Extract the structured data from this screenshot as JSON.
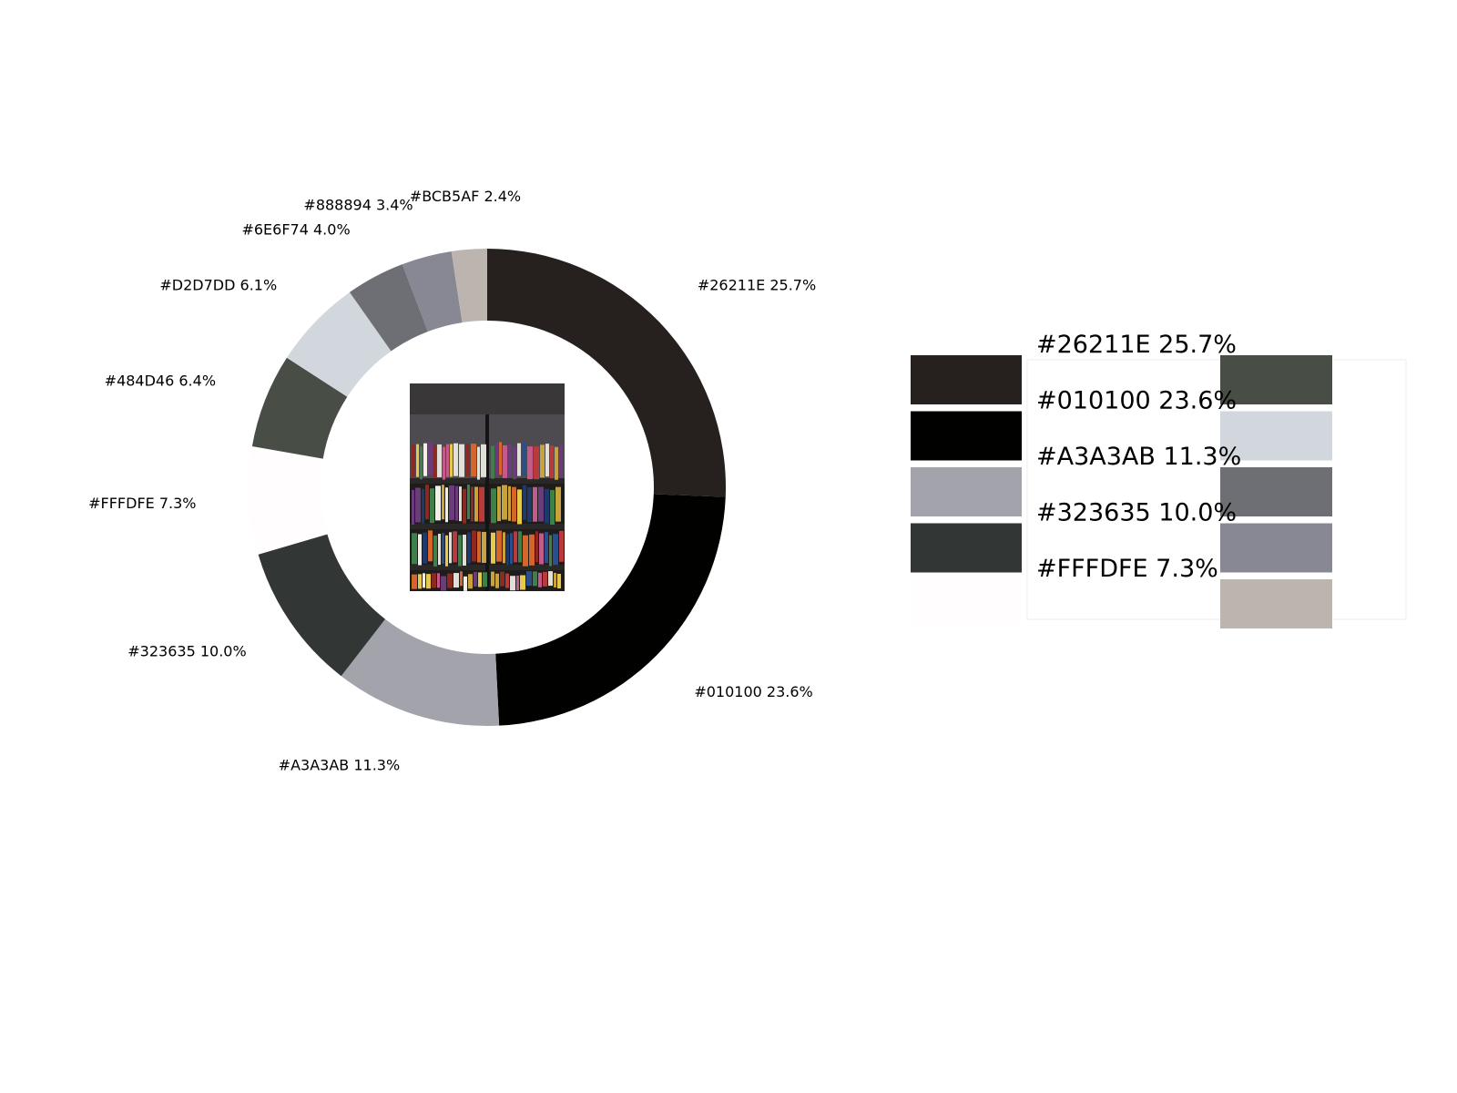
{
  "chart_data": {
    "type": "pie",
    "style": "donut",
    "labels": [
      "#26211E",
      "#010100",
      "#A3A3AB",
      "#323635",
      "#FFFDFE",
      "#484D46",
      "#D2D7DD",
      "#6E6F74",
      "#888894",
      "#BCB5AF"
    ],
    "values": [
      25.7,
      23.6,
      11.3,
      10.0,
      7.3,
      6.4,
      6.1,
      4.0,
      3.4,
      2.4
    ],
    "colors": [
      "#26211E",
      "#010100",
      "#A3A3AB",
      "#323635",
      "#FFFDFE",
      "#484D46",
      "#D2D7DD",
      "#6E6F74",
      "#888894",
      "#BCB5AF"
    ],
    "slice_labels": [
      "#26211E 25.7%",
      "#010100 23.6%",
      "#A3A3AB 11.3%",
      "#323635 10.0%",
      "#FFFDFE 7.3%",
      "#484D46 6.4%",
      "#D2D7DD 6.1%",
      "#6E6F74 4.0%",
      "#888894 3.4%",
      "#BCB5AF 2.4%"
    ],
    "center_image": "bookshelf-photo",
    "legend": {
      "placement": "right",
      "text_entries": [
        "#26211E 25.7%",
        "#010100 23.6%",
        "#A3A3AB 11.3%",
        "#323635 10.0%",
        "#FFFDFE 7.3%"
      ],
      "swatch_colors_col1": [
        "#26211E",
        "#010100",
        "#A3A3AB",
        "#323635",
        "#FFFDFE"
      ],
      "swatch_colors_col2": [
        "#484D46",
        "#D2D7DD",
        "#6E6F74",
        "#888894",
        "#BCB5AF"
      ]
    }
  }
}
